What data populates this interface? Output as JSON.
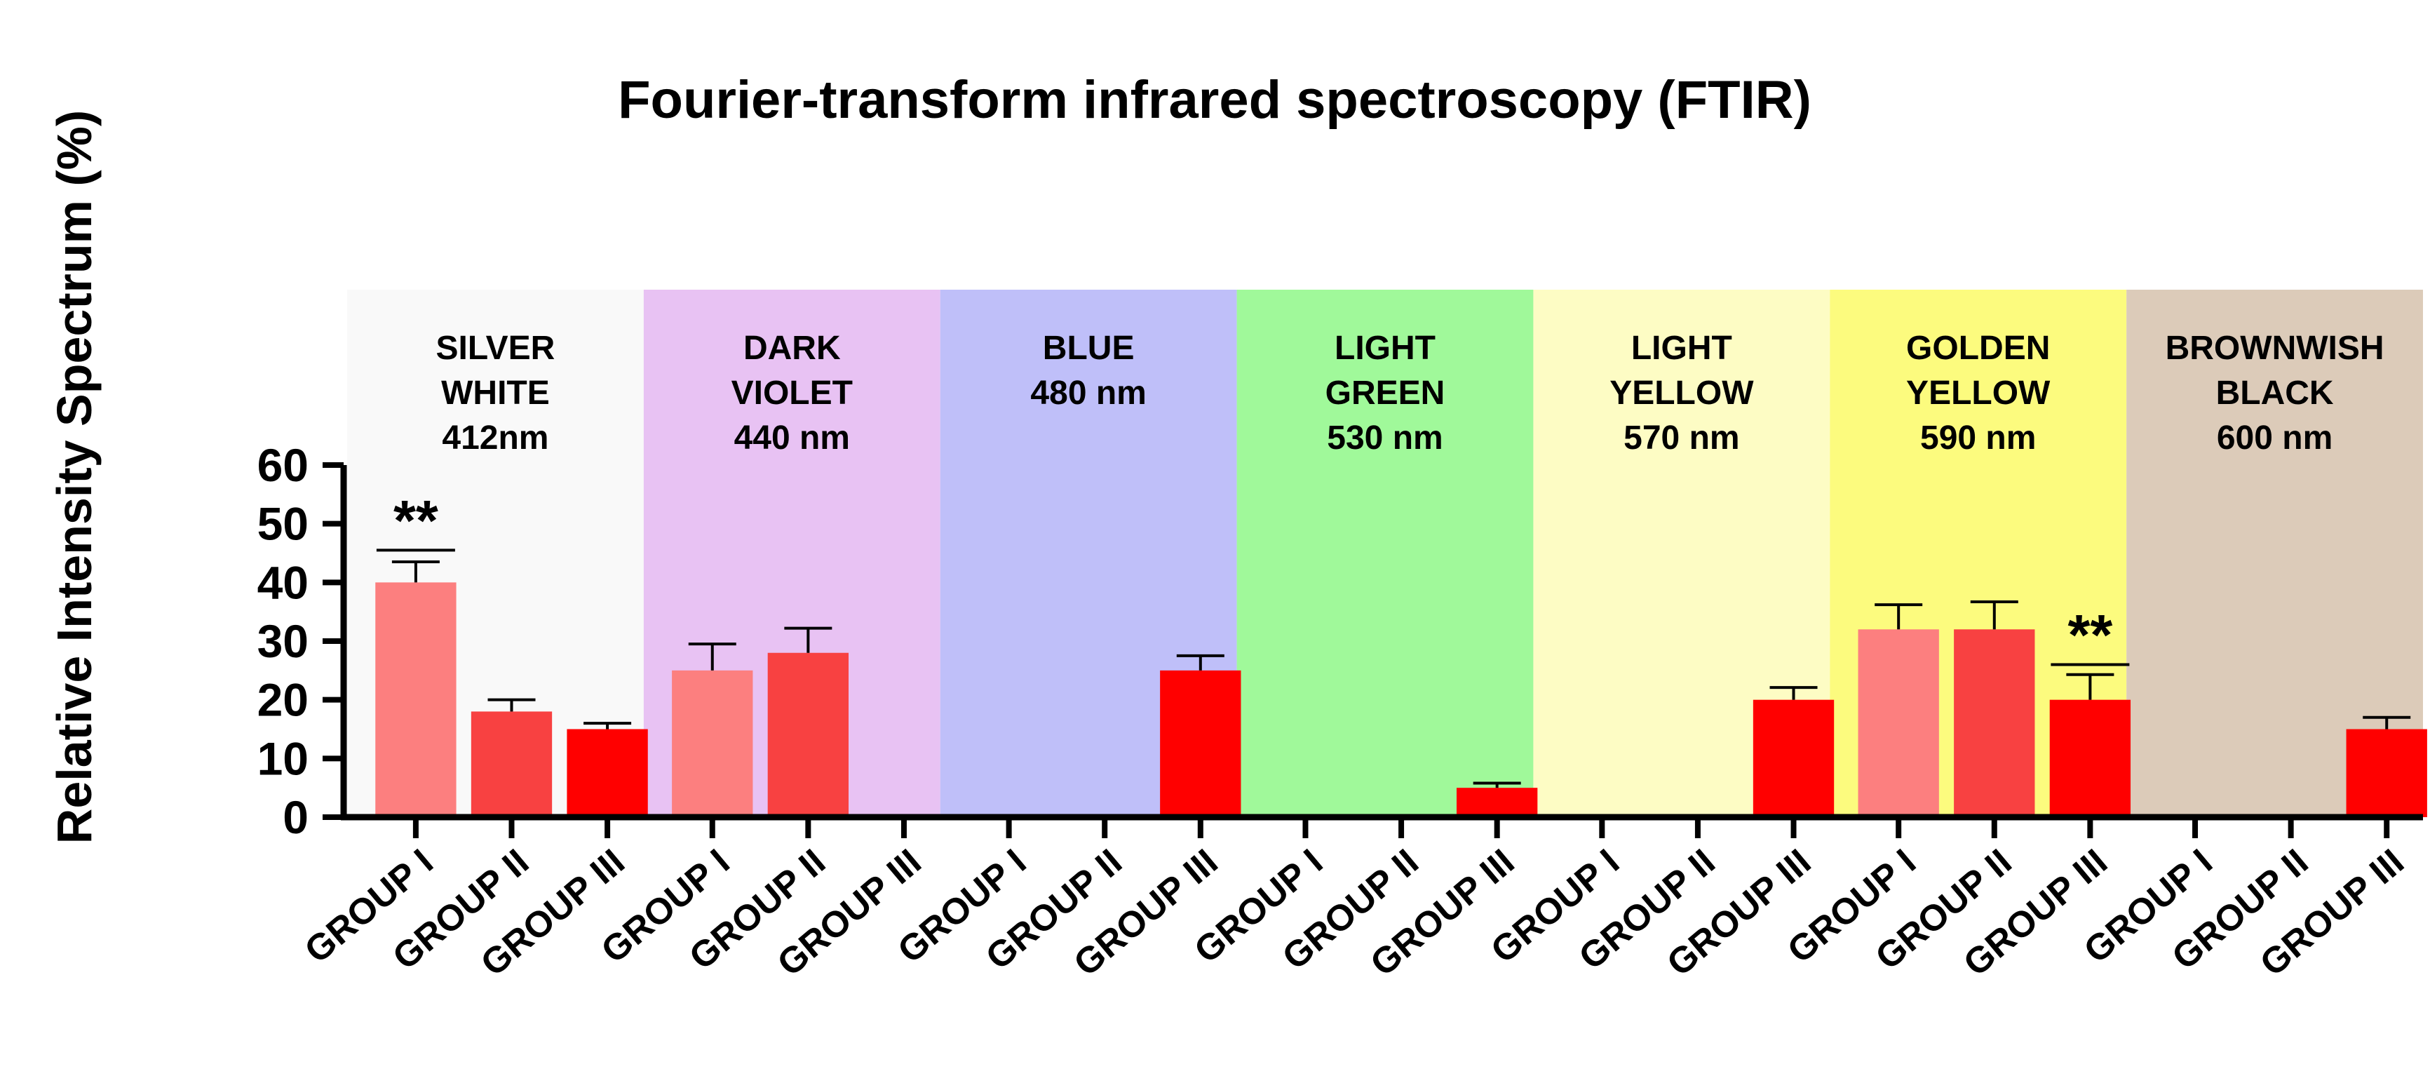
{
  "chart_data": {
    "type": "bar",
    "title": "Fourier-transform infrared spectroscopy (FTIR)",
    "xlabel": "",
    "ylabel": "Relative Intensity Spectrum (%)",
    "ylim": [
      0,
      60
    ],
    "yticks": [
      0,
      10,
      20,
      30,
      40,
      50,
      60
    ],
    "bands": [
      {
        "lines": [
          "SILVER",
          "WHITE",
          "412nm"
        ],
        "color": "#f9f9f9",
        "categories": [
          "GROUP I",
          "GROUP II",
          "GROUP III"
        ],
        "values": [
          40,
          18,
          15
        ],
        "errors": [
          3.5,
          2,
          1
        ],
        "significance": [
          {
            "label": "**",
            "index": 0,
            "height": 45.5
          }
        ]
      },
      {
        "lines": [
          "DARK",
          "VIOLET",
          "440 nm"
        ],
        "color": "#e8c2f3",
        "categories": [
          "GROUP I",
          "GROUP II",
          "GROUP III"
        ],
        "values": [
          25,
          28,
          0
        ],
        "errors": [
          4.5,
          4.2,
          0
        ],
        "significance": []
      },
      {
        "lines": [
          "BLUE",
          "480 nm"
        ],
        "color": "#bfbff9",
        "categories": [
          "GROUP I",
          "GROUP II",
          "GROUP III"
        ],
        "values": [
          0,
          0,
          25
        ],
        "errors": [
          0,
          0,
          2.5
        ],
        "significance": []
      },
      {
        "lines": [
          "LIGHT",
          "GREEN",
          "530 nm"
        ],
        "color": "#a0f99a",
        "categories": [
          "GROUP I",
          "GROUP II",
          "GROUP III"
        ],
        "values": [
          0,
          0,
          5
        ],
        "errors": [
          0,
          0,
          0.8
        ],
        "significance": []
      },
      {
        "lines": [
          "LIGHT",
          "YELLOW",
          "570 nm"
        ],
        "color": "#fdfcc4",
        "categories": [
          "GROUP I",
          "GROUP II",
          "GROUP III"
        ],
        "values": [
          0,
          0,
          20
        ],
        "errors": [
          0,
          0,
          2.1
        ],
        "significance": []
      },
      {
        "lines": [
          "GOLDEN",
          "YELLOW",
          "590 nm"
        ],
        "color": "#fcfb7e",
        "categories": [
          "GROUP I",
          "GROUP II",
          "GROUP III"
        ],
        "values": [
          32,
          32,
          20
        ],
        "errors": [
          4.2,
          4.7,
          4.3
        ],
        "significance": [
          {
            "label": "**",
            "index": 2,
            "height": 26
          }
        ]
      },
      {
        "lines": [
          "BROWNWISH",
          "BLACK",
          "600  nm"
        ],
        "color": "#dccbb9",
        "categories": [
          "GROUP I",
          "GROUP II",
          "GROUP III"
        ],
        "values": [
          0,
          0,
          15
        ],
        "errors": [
          0,
          0,
          2
        ],
        "significance": []
      }
    ],
    "series_colors": {
      "GROUP I": "#fc7f7f",
      "GROUP II": "#f84141",
      "GROUP III": "#ff0000"
    },
    "legend": "none",
    "grid": false
  }
}
